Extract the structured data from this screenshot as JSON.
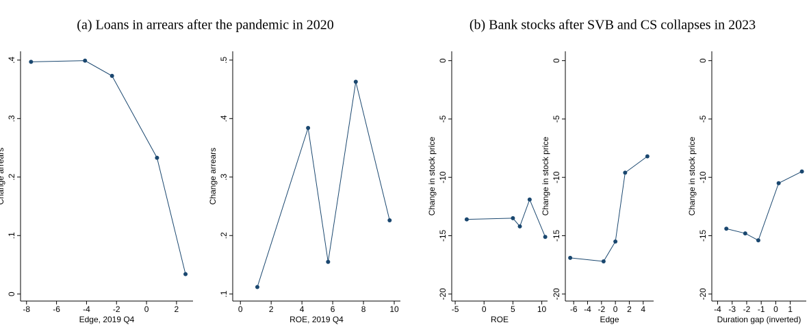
{
  "panel_titles": [
    "(a) Loans in arrears after the pandemic in 2020",
    "(b) Bank stocks after SVB and CS collapses in 2023"
  ],
  "chart_data": [
    {
      "type": "line",
      "xlabel": "Edge, 2019 Q4",
      "ylabel": "Change arrears",
      "color": "#1a476f",
      "x": [
        -7.7,
        -4.1,
        -2.3,
        0.7,
        2.6
      ],
      "values": [
        0.397,
        0.399,
        0.373,
        0.233,
        0.034
      ],
      "xlim": [
        -8.4,
        3.1
      ],
      "xticks": [
        -8,
        -6,
        -4,
        -2,
        0,
        2
      ],
      "ylim": [
        -0.012,
        0.415
      ],
      "yticks": [
        0,
        {
          "value": 0.1,
          "label": ".1"
        },
        {
          "value": 0.2,
          "label": ".2"
        },
        {
          "value": 0.3,
          "label": ".3"
        },
        {
          "value": 0.4,
          "label": ".4"
        }
      ]
    },
    {
      "type": "line",
      "xlabel": "ROE, 2019 Q4",
      "ylabel": "Change arrears",
      "color": "#1a476f",
      "x": [
        1.1,
        4.4,
        5.7,
        7.5,
        9.7
      ],
      "values": [
        0.112,
        0.384,
        0.155,
        0.463,
        0.226
      ],
      "xlim": [
        -0.5,
        10.4
      ],
      "xticks": [
        0,
        2,
        4,
        6,
        8,
        10
      ],
      "ylim": [
        0.088,
        0.515
      ],
      "yticks": [
        {
          "value": 0.1,
          "label": ".1"
        },
        {
          "value": 0.2,
          "label": ".2"
        },
        {
          "value": 0.3,
          "label": ".3"
        },
        {
          "value": 0.4,
          "label": ".4"
        },
        {
          "value": 0.5,
          "label": ".5"
        }
      ]
    },
    {
      "type": "line",
      "xlabel": "ROE",
      "ylabel": "Change in stock price",
      "color": "#1a476f",
      "x": [
        -3.0,
        5.0,
        6.2,
        7.9,
        10.6
      ],
      "values": [
        -13.6,
        -13.5,
        -14.2,
        -11.9,
        -15.1
      ],
      "xlim": [
        -5.6,
        11
      ],
      "xticks": [
        -5,
        0,
        5,
        10
      ],
      "ylim": [
        -20.6,
        0.8
      ],
      "yticks": [
        -20,
        -15,
        -10,
        -5,
        0
      ]
    },
    {
      "type": "line",
      "xlabel": "Edge",
      "ylabel": "Change in stock price",
      "color": "#1a476f",
      "x": [
        -6.5,
        -1.7,
        0,
        1.4,
        4.6
      ],
      "values": [
        -16.9,
        -17.2,
        -15.5,
        -9.6,
        -8.2
      ],
      "xlim": [
        -7.2,
        5.5
      ],
      "xticks": [
        -6,
        -4,
        -2,
        0,
        2,
        4
      ],
      "ylim": [
        -20.6,
        0.8
      ],
      "yticks": [
        -20,
        -15,
        -10,
        -5,
        0
      ]
    },
    {
      "type": "line",
      "xlabel": "Duration gap (inverted)",
      "ylabel": "Change in stock price",
      "color": "#1a476f",
      "x": [
        -3.4,
        -2.1,
        -1.2,
        0.2,
        1.8
      ],
      "values": [
        -14.4,
        -14.8,
        -15.4,
        -10.5,
        -9.5
      ],
      "xlim": [
        -4.4,
        2.1
      ],
      "xticks": [
        -4,
        -3,
        -2,
        -1,
        0,
        1
      ],
      "ylim": [
        -20.6,
        0.8
      ],
      "yticks": [
        -20,
        -15,
        -10,
        -5,
        0
      ]
    }
  ]
}
